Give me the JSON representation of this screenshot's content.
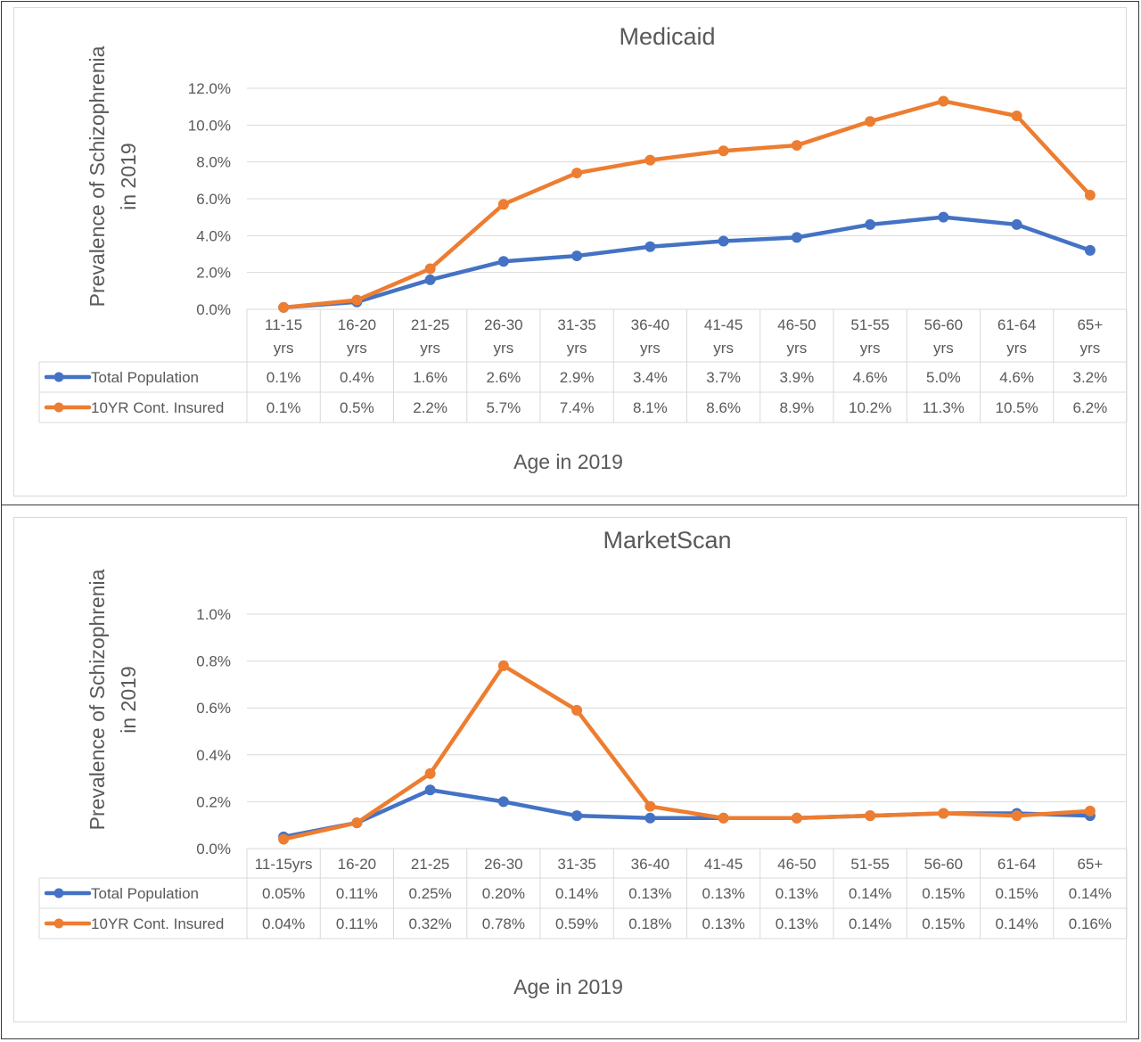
{
  "chart_data": [
    {
      "type": "line",
      "title": "Medicaid",
      "ylabel_lines": [
        "Prevalence of Schizophrenia",
        "in 2019"
      ],
      "xlabel": "Age in 2019",
      "ylim": [
        0,
        12
      ],
      "yticks": [
        "0.0%",
        "2.0%",
        "4.0%",
        "6.0%",
        "8.0%",
        "10.0%",
        "12.0%"
      ],
      "categories": [
        [
          "11-15",
          "yrs"
        ],
        [
          "16-20",
          "yrs"
        ],
        [
          "21-25",
          "yrs"
        ],
        [
          "26-30",
          "yrs"
        ],
        [
          "31-35",
          "yrs"
        ],
        [
          "36-40",
          "yrs"
        ],
        [
          "41-45",
          "yrs"
        ],
        [
          "46-50",
          "yrs"
        ],
        [
          "51-55",
          "yrs"
        ],
        [
          "56-60",
          "yrs"
        ],
        [
          "61-64",
          "yrs"
        ],
        [
          "65+",
          "yrs"
        ]
      ],
      "series": [
        {
          "name": "Total Population",
          "color": "#4472c4",
          "values": [
            0.1,
            0.4,
            1.6,
            2.6,
            2.9,
            3.4,
            3.7,
            3.9,
            4.6,
            5.0,
            4.6,
            3.2
          ],
          "labels": [
            "0.1%",
            "0.4%",
            "1.6%",
            "2.6%",
            "2.9%",
            "3.4%",
            "3.7%",
            "3.9%",
            "4.6%",
            "5.0%",
            "4.6%",
            "3.2%"
          ]
        },
        {
          "name": "10YR Cont. Insured",
          "color": "#ed7d31",
          "values": [
            0.1,
            0.5,
            2.2,
            5.7,
            7.4,
            8.1,
            8.6,
            8.9,
            10.2,
            11.3,
            10.5,
            6.2
          ],
          "labels": [
            "0.1%",
            "0.5%",
            "2.2%",
            "5.7%",
            "7.4%",
            "8.1%",
            "8.6%",
            "8.9%",
            "10.2%",
            "11.3%",
            "10.5%",
            "6.2%"
          ]
        }
      ],
      "grid": true,
      "legend": "data table below plot"
    },
    {
      "type": "line",
      "title": "MarketScan",
      "ylabel_lines": [
        "Prevalence of Schizophrenia",
        "in 2019"
      ],
      "xlabel": "Age in 2019",
      "ylim": [
        0,
        1.0
      ],
      "yticks": [
        "0.0%",
        "0.2%",
        "0.4%",
        "0.6%",
        "0.8%",
        "1.0%"
      ],
      "categories": [
        [
          "11-15yrs"
        ],
        [
          "16-20"
        ],
        [
          "21-25"
        ],
        [
          "26-30"
        ],
        [
          "31-35"
        ],
        [
          "36-40"
        ],
        [
          "41-45"
        ],
        [
          "46-50"
        ],
        [
          "51-55"
        ],
        [
          "56-60"
        ],
        [
          "61-64"
        ],
        [
          "65+"
        ]
      ],
      "series": [
        {
          "name": "Total Population",
          "color": "#4472c4",
          "values": [
            0.05,
            0.11,
            0.25,
            0.2,
            0.14,
            0.13,
            0.13,
            0.13,
            0.14,
            0.15,
            0.15,
            0.14
          ],
          "labels": [
            "0.05%",
            "0.11%",
            "0.25%",
            "0.20%",
            "0.14%",
            "0.13%",
            "0.13%",
            "0.13%",
            "0.14%",
            "0.15%",
            "0.15%",
            "0.14%"
          ]
        },
        {
          "name": "10YR Cont. Insured",
          "color": "#ed7d31",
          "values": [
            0.04,
            0.11,
            0.32,
            0.78,
            0.59,
            0.18,
            0.13,
            0.13,
            0.14,
            0.15,
            0.14,
            0.16
          ],
          "labels": [
            "0.04%",
            "0.11%",
            "0.32%",
            "0.78%",
            "0.59%",
            "0.18%",
            "0.13%",
            "0.13%",
            "0.14%",
            "0.15%",
            "0.14%",
            "0.16%"
          ]
        }
      ],
      "grid": true,
      "legend": "data table below plot"
    }
  ]
}
